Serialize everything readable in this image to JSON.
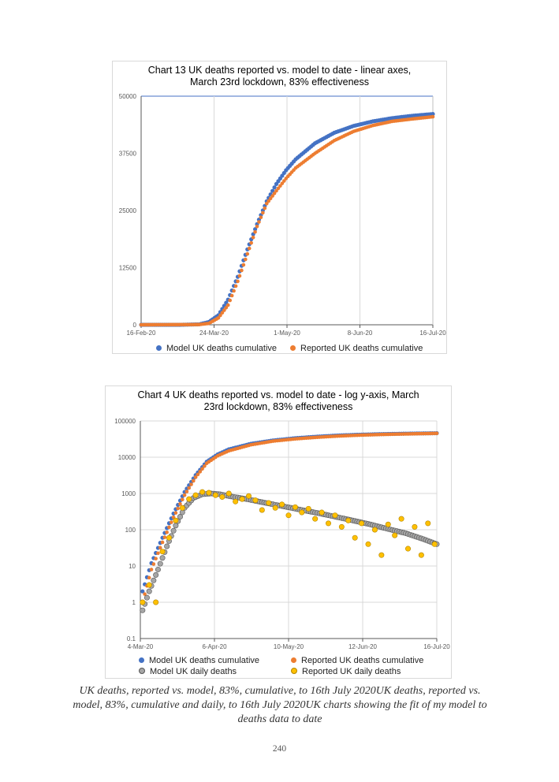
{
  "chart_data": [
    {
      "type": "scatter",
      "title": "Chart 13 UK deaths reported vs. model to date -  linear axes, March 23rd lockdown, 83% effectiveness",
      "y_scale": "linear",
      "ylim": [
        0,
        50000
      ],
      "ytick_labels": [
        "0",
        "12500",
        "25000",
        "37500",
        "50000"
      ],
      "xtick_labels": [
        "16-Feb-20",
        "24-Mar-20",
        "1-May-20",
        "8-Jun-20",
        "16-Jul-20"
      ],
      "x_day_range": [
        0,
        151
      ],
      "series": [
        {
          "name": "Model UK deaths cumulative",
          "color": "#4472c4",
          "x": [
            0,
            20,
            30,
            35,
            40,
            45,
            50,
            55,
            60,
            65,
            70,
            75,
            80,
            90,
            100,
            110,
            120,
            130,
            140,
            151
          ],
          "values": [
            0,
            0,
            100,
            600,
            2100,
            5500,
            10500,
            16500,
            22000,
            27000,
            30800,
            33800,
            36200,
            39700,
            42000,
            43500,
            44500,
            45200,
            45700,
            46100
          ]
        },
        {
          "name": "Reported UK deaths cumulative",
          "color": "#ed7d31",
          "x": [
            0,
            30,
            35,
            40,
            45,
            50,
            55,
            60,
            65,
            70,
            75,
            80,
            90,
            100,
            110,
            120,
            130,
            140,
            151
          ],
          "values": [
            0,
            50,
            300,
            1500,
            4300,
            9500,
            15500,
            21500,
            26500,
            29300,
            32000,
            34300,
            37500,
            40300,
            42300,
            43600,
            44500,
            45000,
            45500
          ]
        }
      ]
    },
    {
      "type": "scatter",
      "title": "Chart 4 UK deaths reported vs. model to date - log y-axis, March 23rd lockdown, 83% effectiveness",
      "y_scale": "log",
      "ylim": [
        0.1,
        100000
      ],
      "ytick_labels": [
        "0.1",
        "1",
        "10",
        "100",
        "1000",
        "10000",
        "100000"
      ],
      "xtick_labels": [
        "4-Mar-20",
        "6-Apr-20",
        "10-May-20",
        "12-Jun-20",
        "16-Jul-20"
      ],
      "x_day_range": [
        0,
        134
      ],
      "series": [
        {
          "name": "Model UK deaths cumulative",
          "color": "#4472c4",
          "x": [
            1,
            5,
            10,
            15,
            20,
            25,
            30,
            35,
            40,
            50,
            60,
            70,
            80,
            90,
            100,
            110,
            120,
            134
          ],
          "values": [
            2,
            12,
            60,
            280,
            1100,
            3200,
            7500,
            12000,
            16500,
            23500,
            29000,
            33500,
            37000,
            40000,
            42000,
            43500,
            44700,
            46000
          ]
        },
        {
          "name": "Reported UK deaths cumulative",
          "color": "#ed7d31",
          "x": [
            1,
            5,
            10,
            15,
            20,
            25,
            30,
            35,
            40,
            50,
            60,
            70,
            80,
            90,
            100,
            110,
            120,
            134
          ],
          "values": [
            1,
            8,
            45,
            220,
            900,
            2800,
            6800,
            11000,
            15000,
            22000,
            27800,
            32000,
            35500,
            38500,
            40800,
            42500,
            43800,
            45500
          ]
        },
        {
          "name": "Model UK daily deaths",
          "color": "#a6a6a6",
          "x": [
            1,
            4,
            8,
            12,
            16,
            20,
            24,
            28,
            32,
            36,
            40,
            48,
            56,
            64,
            72,
            80,
            88,
            96,
            104,
            112,
            120,
            128,
            134
          ],
          "values": [
            0.6,
            2,
            8,
            35,
            130,
            400,
            750,
            950,
            1000,
            950,
            850,
            700,
            560,
            450,
            360,
            290,
            230,
            180,
            140,
            105,
            80,
            55,
            40
          ]
        },
        {
          "name": "Reported UK daily deaths",
          "color": "#ffc000",
          "x": [
            1,
            4,
            7,
            10,
            13,
            16,
            19,
            22,
            25,
            28,
            31,
            34,
            37,
            40,
            43,
            46,
            49,
            52,
            55,
            58,
            61,
            64,
            67,
            70,
            73,
            76,
            79,
            82,
            85,
            88,
            91,
            94,
            97,
            100,
            103,
            106,
            109,
            112,
            115,
            118,
            121,
            124,
            127,
            130,
            133
          ],
          "values": [
            1,
            3,
            1,
            25,
            60,
            180,
            400,
            700,
            900,
            1100,
            1050,
            900,
            800,
            1000,
            600,
            700,
            850,
            650,
            350,
            550,
            400,
            500,
            250,
            420,
            300,
            380,
            200,
            300,
            150,
            250,
            120,
            180,
            60,
            150,
            40,
            100,
            20,
            140,
            70,
            200,
            30,
            120,
            20,
            150,
            40
          ]
        }
      ]
    }
  ],
  "caption": "UK deaths, reported vs. model, 83%, cumulative, to 16th July 2020UK deaths, reported vs. model, 83%, cumulative and daily, to 16th July 2020UK charts showing the fit of my model to deaths data to date",
  "page_number": "240"
}
